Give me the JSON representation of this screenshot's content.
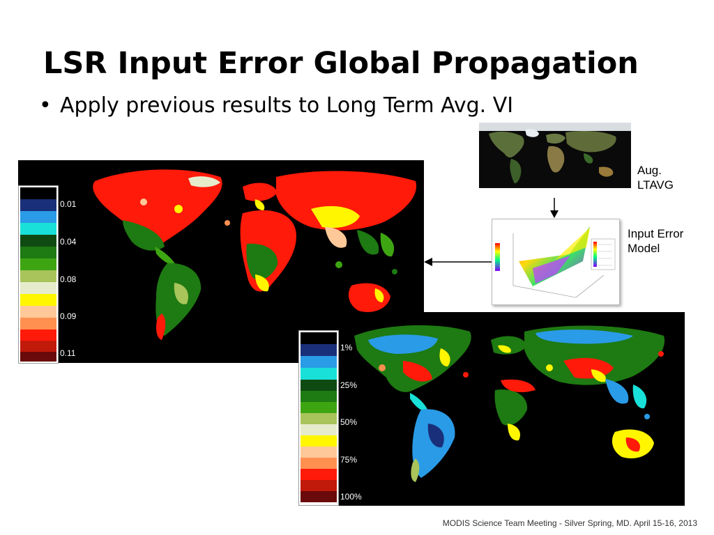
{
  "slide": {
    "title": "LSR Input Error Global Propagation",
    "bullet": "Apply previous results to Long Term Avg. VI",
    "footer": "MODIS Science Team Meeting - Silver Spring, MD. April 15-16, 2013"
  },
  "labels": {
    "ltavg_line1": "Aug.",
    "ltavg_line2": "LTAVG",
    "model_line1": "Input Error",
    "model_line2": "Model"
  },
  "legend_absolute": {
    "ticks": [
      "0.01",
      "0.04",
      "0.08",
      "0.09",
      "0.11"
    ]
  },
  "legend_relative": {
    "ticks": [
      "1%",
      "25%",
      "50%",
      "75%",
      "100%"
    ]
  },
  "colors": {
    "scale": [
      "#000000",
      "#1a2f7a",
      "#2a9be6",
      "#19e0d8",
      "#0f4a12",
      "#1e7a12",
      "#3ea512",
      "#a8c45a",
      "#e6eccb",
      "#fff600",
      "#ffc898",
      "#ff9050",
      "#ff1a0a",
      "#c21a0a",
      "#6a0a0a"
    ]
  }
}
